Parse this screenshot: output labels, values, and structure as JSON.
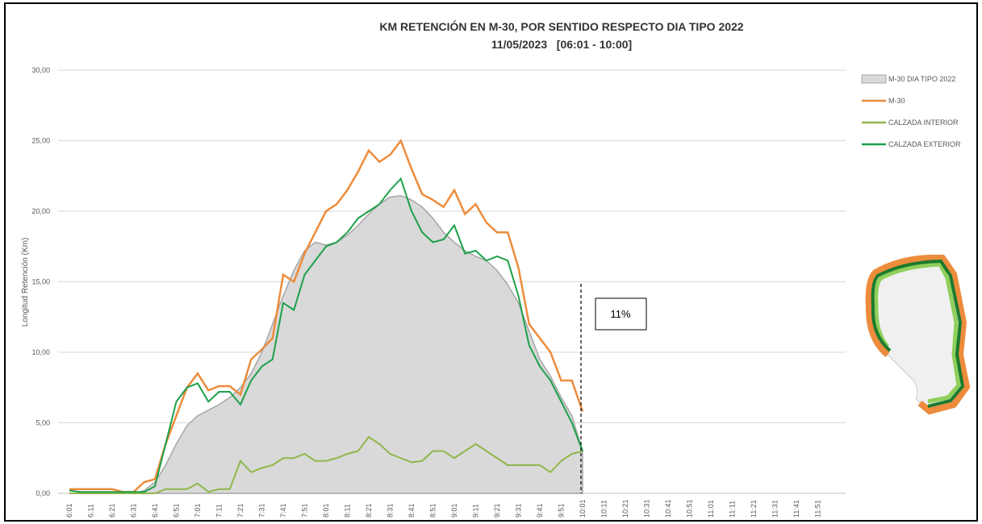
{
  "chart_data": {
    "type": "line",
    "title": "KM RETENCIÓN EN M-30, POR SENTIDO RESPECTO DIA TIPO 2022",
    "subtitle": "11/05/2023   [06:01 - 10:00]",
    "y_label": "Longitud Retención (Km)",
    "annotation": "11%",
    "categories": [
      "6:01",
      null,
      "6:11",
      null,
      "6:21",
      null,
      "6:31",
      null,
      "6:41",
      null,
      "6:51",
      null,
      "7:01",
      null,
      "7:11",
      null,
      "7:21",
      null,
      "7:31",
      null,
      "7:41",
      null,
      "7:51",
      null,
      "8:01",
      null,
      "8:11",
      null,
      "8:21",
      null,
      "8:31",
      null,
      "8:41",
      null,
      "8:51",
      null,
      "9:01",
      null,
      "9:11",
      null,
      "9:21",
      null,
      "9:31",
      null,
      "9:41",
      null,
      "9:51",
      null,
      "10:01",
      null,
      "10:11",
      null,
      "10:21",
      null,
      "10:31",
      null,
      "10:41",
      null,
      "10:51",
      null,
      "11:01",
      null,
      "11:11",
      null,
      "11:21",
      null,
      "11:31",
      null,
      "11:41",
      null,
      "11:51",
      null
    ],
    "ylim": [
      0,
      30
    ],
    "yticks": [
      {
        "value": 0,
        "label": "0,00"
      },
      {
        "value": 5,
        "label": "5,00"
      },
      {
        "value": 10,
        "label": "10,00"
      },
      {
        "value": 15,
        "label": "15,00"
      },
      {
        "value": 20,
        "label": "20,00"
      },
      {
        "value": 25,
        "label": "25,00"
      },
      {
        "value": 30,
        "label": "30,00"
      }
    ],
    "grid": true,
    "legend": "right",
    "series": [
      {
        "name": "M-30 DIA TIPO 2022",
        "kind": "area",
        "color": "#d9d9d9",
        "values": [
          0,
          0,
          0,
          0,
          0,
          0,
          0,
          0.2,
          0.8,
          2,
          3.5,
          4.8,
          5.5,
          5.9,
          6.3,
          6.8,
          7.5,
          8.5,
          10,
          12,
          14,
          15.8,
          17.2,
          17.8,
          17.6,
          17.8,
          18.3,
          19,
          19.8,
          20.5,
          21,
          21.1,
          20.8,
          20.3,
          19.5,
          18.5,
          17.8,
          17.2,
          16.8,
          16.5,
          15.8,
          14.8,
          13.5,
          11.5,
          9.5,
          8.3,
          6.8,
          5.5,
          3,
          null,
          null,
          null,
          null,
          null,
          null,
          null,
          null,
          null,
          null,
          null,
          null,
          null,
          null,
          null,
          null,
          null,
          null,
          null,
          null,
          null,
          null,
          null
        ]
      },
      {
        "name": "M-30",
        "color": "#ed8c3c",
        "values": [
          0.3,
          0.3,
          0.3,
          0.3,
          0.3,
          0.1,
          0.1,
          0.8,
          1,
          3.5,
          5.5,
          7.5,
          8.5,
          7.3,
          7.6,
          7.6,
          7,
          9.5,
          10.2,
          11,
          15.5,
          15,
          17,
          18.5,
          20,
          20.5,
          21.5,
          22.8,
          24.3,
          23.5,
          24,
          25,
          23,
          21.2,
          20.8,
          20.3,
          21.5,
          19.8,
          20.5,
          19.2,
          18.5,
          18.5,
          16,
          12,
          11,
          10,
          8,
          8,
          5.8,
          null,
          null,
          null,
          null,
          null,
          null,
          null,
          null,
          null,
          null,
          null,
          null,
          null,
          null,
          null,
          null,
          null,
          null,
          null,
          null,
          null,
          null,
          null
        ]
      },
      {
        "name": "CALZADA INTERIOR",
        "color": "#8fb74a",
        "values": [
          0,
          0,
          0,
          0,
          0,
          0,
          0,
          0,
          0,
          0.3,
          0.3,
          0.3,
          0.7,
          0.1,
          0.3,
          0.3,
          2.3,
          1.5,
          1.8,
          2,
          2.5,
          2.5,
          2.8,
          2.3,
          2.3,
          2.5,
          2.8,
          3,
          4,
          3.5,
          2.8,
          2.5,
          2.2,
          2.3,
          3,
          3,
          2.5,
          3,
          3.5,
          3,
          2.5,
          2,
          2,
          2,
          2,
          1.5,
          2.3,
          2.8,
          3,
          null,
          null,
          null,
          null,
          null,
          null,
          null,
          null,
          null,
          null,
          null,
          null,
          null,
          null,
          null,
          null,
          null,
          null,
          null,
          null,
          null,
          null,
          null
        ]
      },
      {
        "name": "CALZADA EXTERIOR",
        "color": "#1ea04a",
        "values": [
          0.2,
          0.1,
          0.1,
          0.1,
          0.1,
          0.1,
          0.1,
          0.1,
          0.5,
          3.5,
          6.5,
          7.5,
          7.8,
          6.5,
          7.2,
          7.2,
          6.3,
          8,
          9,
          9.5,
          13.5,
          13,
          15.5,
          16.5,
          17.5,
          17.8,
          18.5,
          19.5,
          20,
          20.5,
          21.5,
          22.3,
          20,
          18.5,
          17.8,
          18,
          19,
          17,
          17.2,
          16.5,
          16.8,
          16.5,
          14,
          10.5,
          9,
          8,
          6.5,
          5,
          3,
          null,
          null,
          null,
          null,
          null,
          null,
          null,
          null,
          null,
          null,
          null,
          null,
          null,
          null,
          null,
          null,
          null,
          null,
          null,
          null,
          null,
          null,
          null
        ]
      }
    ]
  }
}
